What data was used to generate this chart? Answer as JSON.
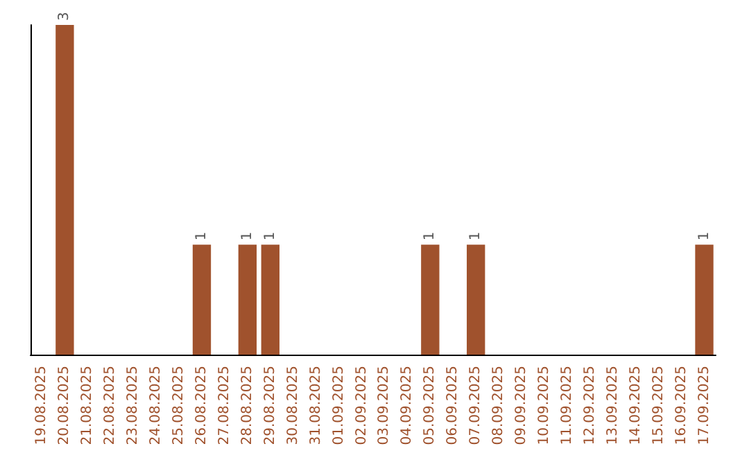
{
  "chart_data": {
    "type": "bar",
    "categories": [
      "19.08.2025",
      "20.08.2025",
      "21.08.2025",
      "22.08.2025",
      "23.08.2025",
      "24.08.2025",
      "25.08.2025",
      "26.08.2025",
      "27.08.2025",
      "28.08.2025",
      "29.08.2025",
      "30.08.2025",
      "31.08.2025",
      "01.09.2025",
      "02.09.2025",
      "03.09.2025",
      "04.09.2025",
      "05.09.2025",
      "06.09.2025",
      "07.09.2025",
      "08.09.2025",
      "09.09.2025",
      "10.09.2025",
      "11.09.2025",
      "12.09.2025",
      "13.09.2025",
      "14.09.2025",
      "15.09.2025",
      "16.09.2025",
      "17.09.2025"
    ],
    "values": [
      0,
      3,
      0,
      0,
      0,
      0,
      0,
      1,
      0,
      1,
      1,
      0,
      0,
      0,
      0,
      0,
      0,
      1,
      0,
      1,
      0,
      0,
      0,
      0,
      0,
      0,
      0,
      0,
      0,
      1
    ],
    "value_labels": [
      null,
      "3",
      null,
      null,
      null,
      null,
      null,
      "1",
      null,
      "1",
      "1",
      null,
      null,
      null,
      null,
      null,
      null,
      "1",
      null,
      "1",
      null,
      null,
      null,
      null,
      null,
      null,
      null,
      null,
      null,
      "1"
    ],
    "color": "#a0522d",
    "grid": false
  }
}
